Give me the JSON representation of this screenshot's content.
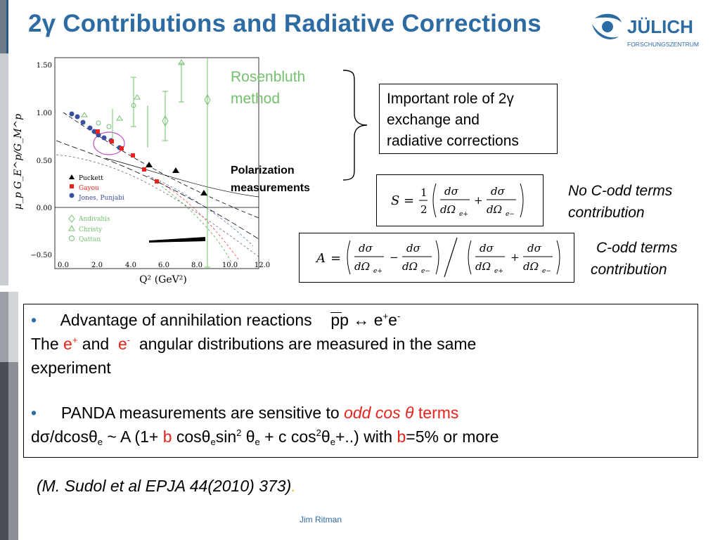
{
  "slide": {
    "title": "2γ Contributions and Radiative Corrections",
    "footer": "Jim Ritman"
  },
  "logo": {
    "name": "JÜLICH",
    "subtitle": "FORSCHUNGSZENTRUM",
    "color": "#2d6ba3"
  },
  "plot": {
    "ylabel": "μ_p G_E^p/G_M^p",
    "xlabel": "Q² (GeV²)",
    "y_ticks": [
      "1.50",
      "1.00",
      "0.50",
      "0.00",
      "−0.50"
    ],
    "x_ticks": [
      "0.0",
      "2.0",
      "4.0",
      "6.0",
      "8.0",
      "10.0",
      "12.0"
    ],
    "legend_top": [
      "Puckett",
      "Gayou",
      "Jones, Punjabi"
    ],
    "legend_bottom": [
      "Andivahis",
      "Christy",
      "Qattan"
    ]
  },
  "labels": {
    "rosenbluth": [
      "Rosenbluth",
      "method"
    ],
    "polarization": [
      "Polarization",
      "measurements"
    ],
    "role_box": [
      "Important role of 2γ",
      "exchange and",
      "radiative corrections"
    ],
    "no_c_odd": [
      "No C-odd terms",
      "contribution"
    ],
    "c_odd": [
      "C-odd terms",
      "contribution"
    ]
  },
  "equations": {
    "s_symbol": "S",
    "a_symbol": "A"
  },
  "main": {
    "bullet1": {
      "lead": "Advantage of  annihilation reactions",
      "reaction": "pp ↔ e",
      "line2_pre": "The ",
      "line2_eplus": "e",
      "line2_and": " and ",
      "line2_eminus": "e",
      "line2_post": " angular distributions  are measured in the same",
      "line3": "experiment"
    },
    "bullet2": {
      "lead": "PANDA measurements are sensitive to ",
      "highlight": "odd cos θ",
      "terms": " terms",
      "formula_a": "dσ/dcosθ",
      "formula_b": " ~ A (1+ ",
      "b": "b",
      "formula_c": " cosθ",
      "formula_d": "sin",
      "formula_e": " θ",
      "formula_f": " + c cos",
      "formula_g": "θ",
      "formula_h": "+..)   with ",
      "formula_i": "=5% or more"
    }
  },
  "citation": {
    "text": "(M. Sudol et al EPJA 44(2010) 373)",
    "dot": "."
  },
  "colors": {
    "title_blue": "#2d6ba3",
    "red": "#e8231b",
    "rosenbluth_green": "#74c06e"
  }
}
